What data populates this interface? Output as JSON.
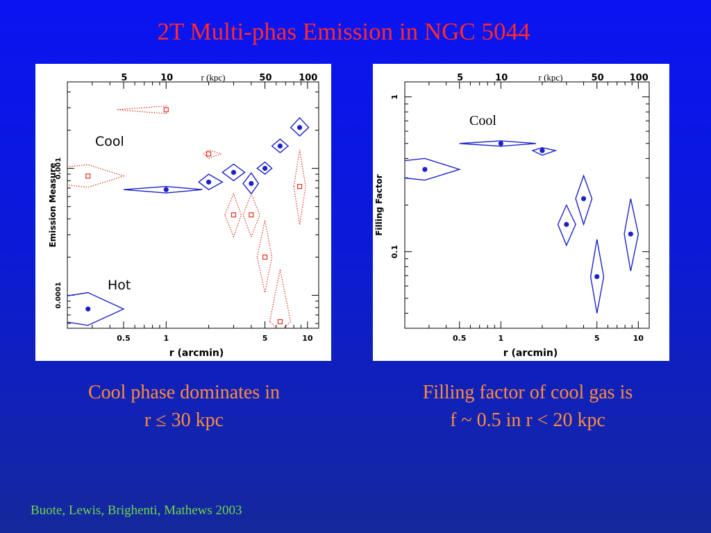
{
  "slide": {
    "title": "2T Multi-phas Emission in NGC 5044",
    "caption_left_line1": "Cool phase dominates in",
    "caption_left_line2": "r ≤ 30 kpc",
    "caption_right_line1": "Filling factor of cool gas is",
    "caption_right_line2": "f ~ 0.5 in r < 20 kpc",
    "credit": "Buote, Lewis, Brighenti, Mathews 2003"
  },
  "chart_data": [
    {
      "type": "scatter",
      "xlabel": "r (arcmin)",
      "ylabel": "Emission Measure",
      "top_axis_label": "r (kpc)",
      "x_scale": "log",
      "y_scale": "log",
      "xlim": [
        0.2,
        12
      ],
      "ylim": [
        5.5e-05,
        0.0048
      ],
      "x_ticks": [
        0.5,
        1,
        5,
        10
      ],
      "x_tick_labels": [
        "0.5",
        "1",
        "5",
        "10"
      ],
      "y_ticks": [
        0.0001,
        0.001
      ],
      "y_tick_labels": [
        "0.0001",
        "0.001"
      ],
      "top_ticks": [
        5,
        10,
        50,
        100
      ],
      "top_tick_labels": [
        "5",
        "10",
        "50",
        "100"
      ],
      "annotations": [
        "Cool",
        "Hot"
      ],
      "colors": {
        "cool": "#e0301e",
        "hot": "#1a22c8"
      },
      "series": [
        {
          "name": "Cool",
          "marker": "open-square",
          "line": "dotted",
          "x": [
            0.28,
            1.0,
            2.0,
            3.0,
            4.0,
            5.0,
            6.4,
            8.8
          ],
          "xerr": [
            [
              0.05,
              0.5
            ],
            [
              0.45,
              1.0
            ],
            [
              1.85,
              2.45
            ],
            [
              2.6,
              3.4
            ],
            [
              3.5,
              4.6
            ],
            [
              4.4,
              5.6
            ],
            [
              5.4,
              7.6
            ],
            [
              8.0,
              9.7
            ]
          ],
          "y": [
            0.00087,
            0.0029,
            0.0013,
            0.00043,
            0.00043,
            0.0002,
            6.2e-05,
            0.00072
          ],
          "yerr": [
            [
              0.00071,
              0.00107
            ],
            [
              0.0027,
              0.0031
            ],
            [
              0.0012,
              0.0014
            ],
            [
              0.00029,
              0.00063
            ],
            [
              0.00029,
              0.00063
            ],
            [
              0.000105,
              0.00039
            ],
            [
              5.2e-05,
              0.00016
            ],
            [
              0.00036,
              0.0014
            ]
          ]
        },
        {
          "name": "Hot",
          "marker": "filled-circle",
          "line": "solid",
          "x": [
            0.28,
            1.0,
            2.0,
            3.0,
            4.0,
            5.0,
            6.4,
            8.8
          ],
          "xerr": [
            [
              0.05,
              0.5
            ],
            [
              0.5,
              1.8
            ],
            [
              1.7,
              2.5
            ],
            [
              2.5,
              3.6
            ],
            [
              3.5,
              4.5
            ],
            [
              4.4,
              5.6
            ],
            [
              5.6,
              7.3
            ],
            [
              7.6,
              10.2
            ]
          ],
          "y": [
            7.8e-05,
            0.00068,
            0.00078,
            0.00093,
            0.00076,
            0.001,
            0.0015,
            0.0021
          ],
          "yerr": [
            [
              5.8e-05,
              0.000105
            ],
            [
              0.00064,
              0.00072
            ],
            [
              0.00068,
              0.0009
            ],
            [
              0.0008,
              0.00108
            ],
            [
              0.00063,
              0.00092
            ],
            [
              0.0009,
              0.00112
            ],
            [
              0.00133,
              0.0017
            ],
            [
              0.0018,
              0.0025
            ]
          ]
        }
      ]
    },
    {
      "type": "scatter",
      "xlabel": "r (arcmin)",
      "ylabel": "Filling Factor",
      "top_axis_label": "r (kpc)",
      "x_scale": "log",
      "y_scale": "log",
      "xlim": [
        0.2,
        12
      ],
      "ylim": [
        0.032,
        1.25
      ],
      "x_ticks": [
        0.5,
        1,
        5,
        10
      ],
      "x_tick_labels": [
        "0.5",
        "1",
        "5",
        "10"
      ],
      "y_ticks": [
        0.1,
        1
      ],
      "y_tick_labels": [
        "0.1",
        "1"
      ],
      "top_ticks": [
        5,
        10,
        50,
        100
      ],
      "top_tick_labels": [
        "5",
        "10",
        "50",
        "100"
      ],
      "annotations": [
        "Cool"
      ],
      "colors": {
        "cool": "#1a22c8"
      },
      "series": [
        {
          "name": "Cool",
          "marker": "filled-circle",
          "line": "solid",
          "x": [
            0.28,
            1.0,
            2.0,
            3.0,
            4.0,
            5.0,
            8.8
          ],
          "xerr": [
            [
              0.05,
              0.5
            ],
            [
              0.5,
              1.8
            ],
            [
              1.7,
              2.5
            ],
            [
              2.6,
              3.5
            ],
            [
              3.5,
              4.6
            ],
            [
              4.5,
              5.6
            ],
            [
              7.9,
              10.0
            ]
          ],
          "y": [
            0.34,
            0.5,
            0.45,
            0.15,
            0.22,
            0.069,
            0.13
          ],
          "yerr": [
            [
              0.29,
              0.4
            ],
            [
              0.48,
              0.52
            ],
            [
              0.42,
              0.47
            ],
            [
              0.11,
              0.2
            ],
            [
              0.15,
              0.31
            ],
            [
              0.04,
              0.12
            ],
            [
              0.075,
              0.22
            ]
          ]
        }
      ]
    }
  ]
}
